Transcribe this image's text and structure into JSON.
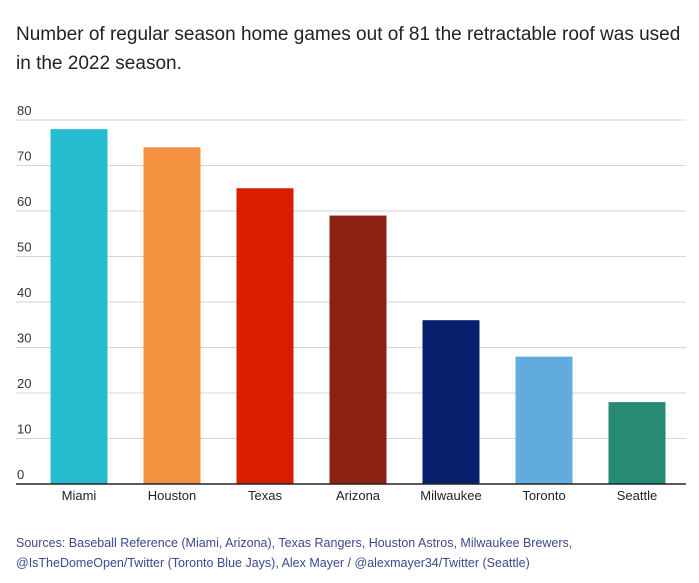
{
  "title": "Number of regular season home games out of 81 the retractable roof was used in the 2022 season.",
  "sources": {
    "line1": "Sources: Baseball Reference (Miami, Arizona), Texas Rangers, Houston Astros, Milwaukee Brewers,",
    "line2": "@IsTheDomeOpen/Twitter (Toronto Blue Jays), Alex Mayer / @alexmayer34/Twitter (Seattle)"
  },
  "chart_data": {
    "type": "bar",
    "title": "Number of regular season home games out of 81 the retractable roof was used in the 2022 season.",
    "categories": [
      "Miami",
      "Houston",
      "Texas",
      "Arizona",
      "Milwaukee",
      "Toronto",
      "Seattle"
    ],
    "values": [
      78,
      74,
      65,
      59,
      36,
      28,
      18
    ],
    "colors": [
      "#26bccf",
      "#f39140",
      "#d91d00",
      "#8b2013",
      "#06206e",
      "#62acdc",
      "#268a74"
    ],
    "yticks": [
      0,
      10,
      20,
      30,
      40,
      50,
      60,
      70,
      80
    ],
    "ylim": [
      0,
      80
    ],
    "grid": true,
    "xlabel": "",
    "ylabel": ""
  }
}
